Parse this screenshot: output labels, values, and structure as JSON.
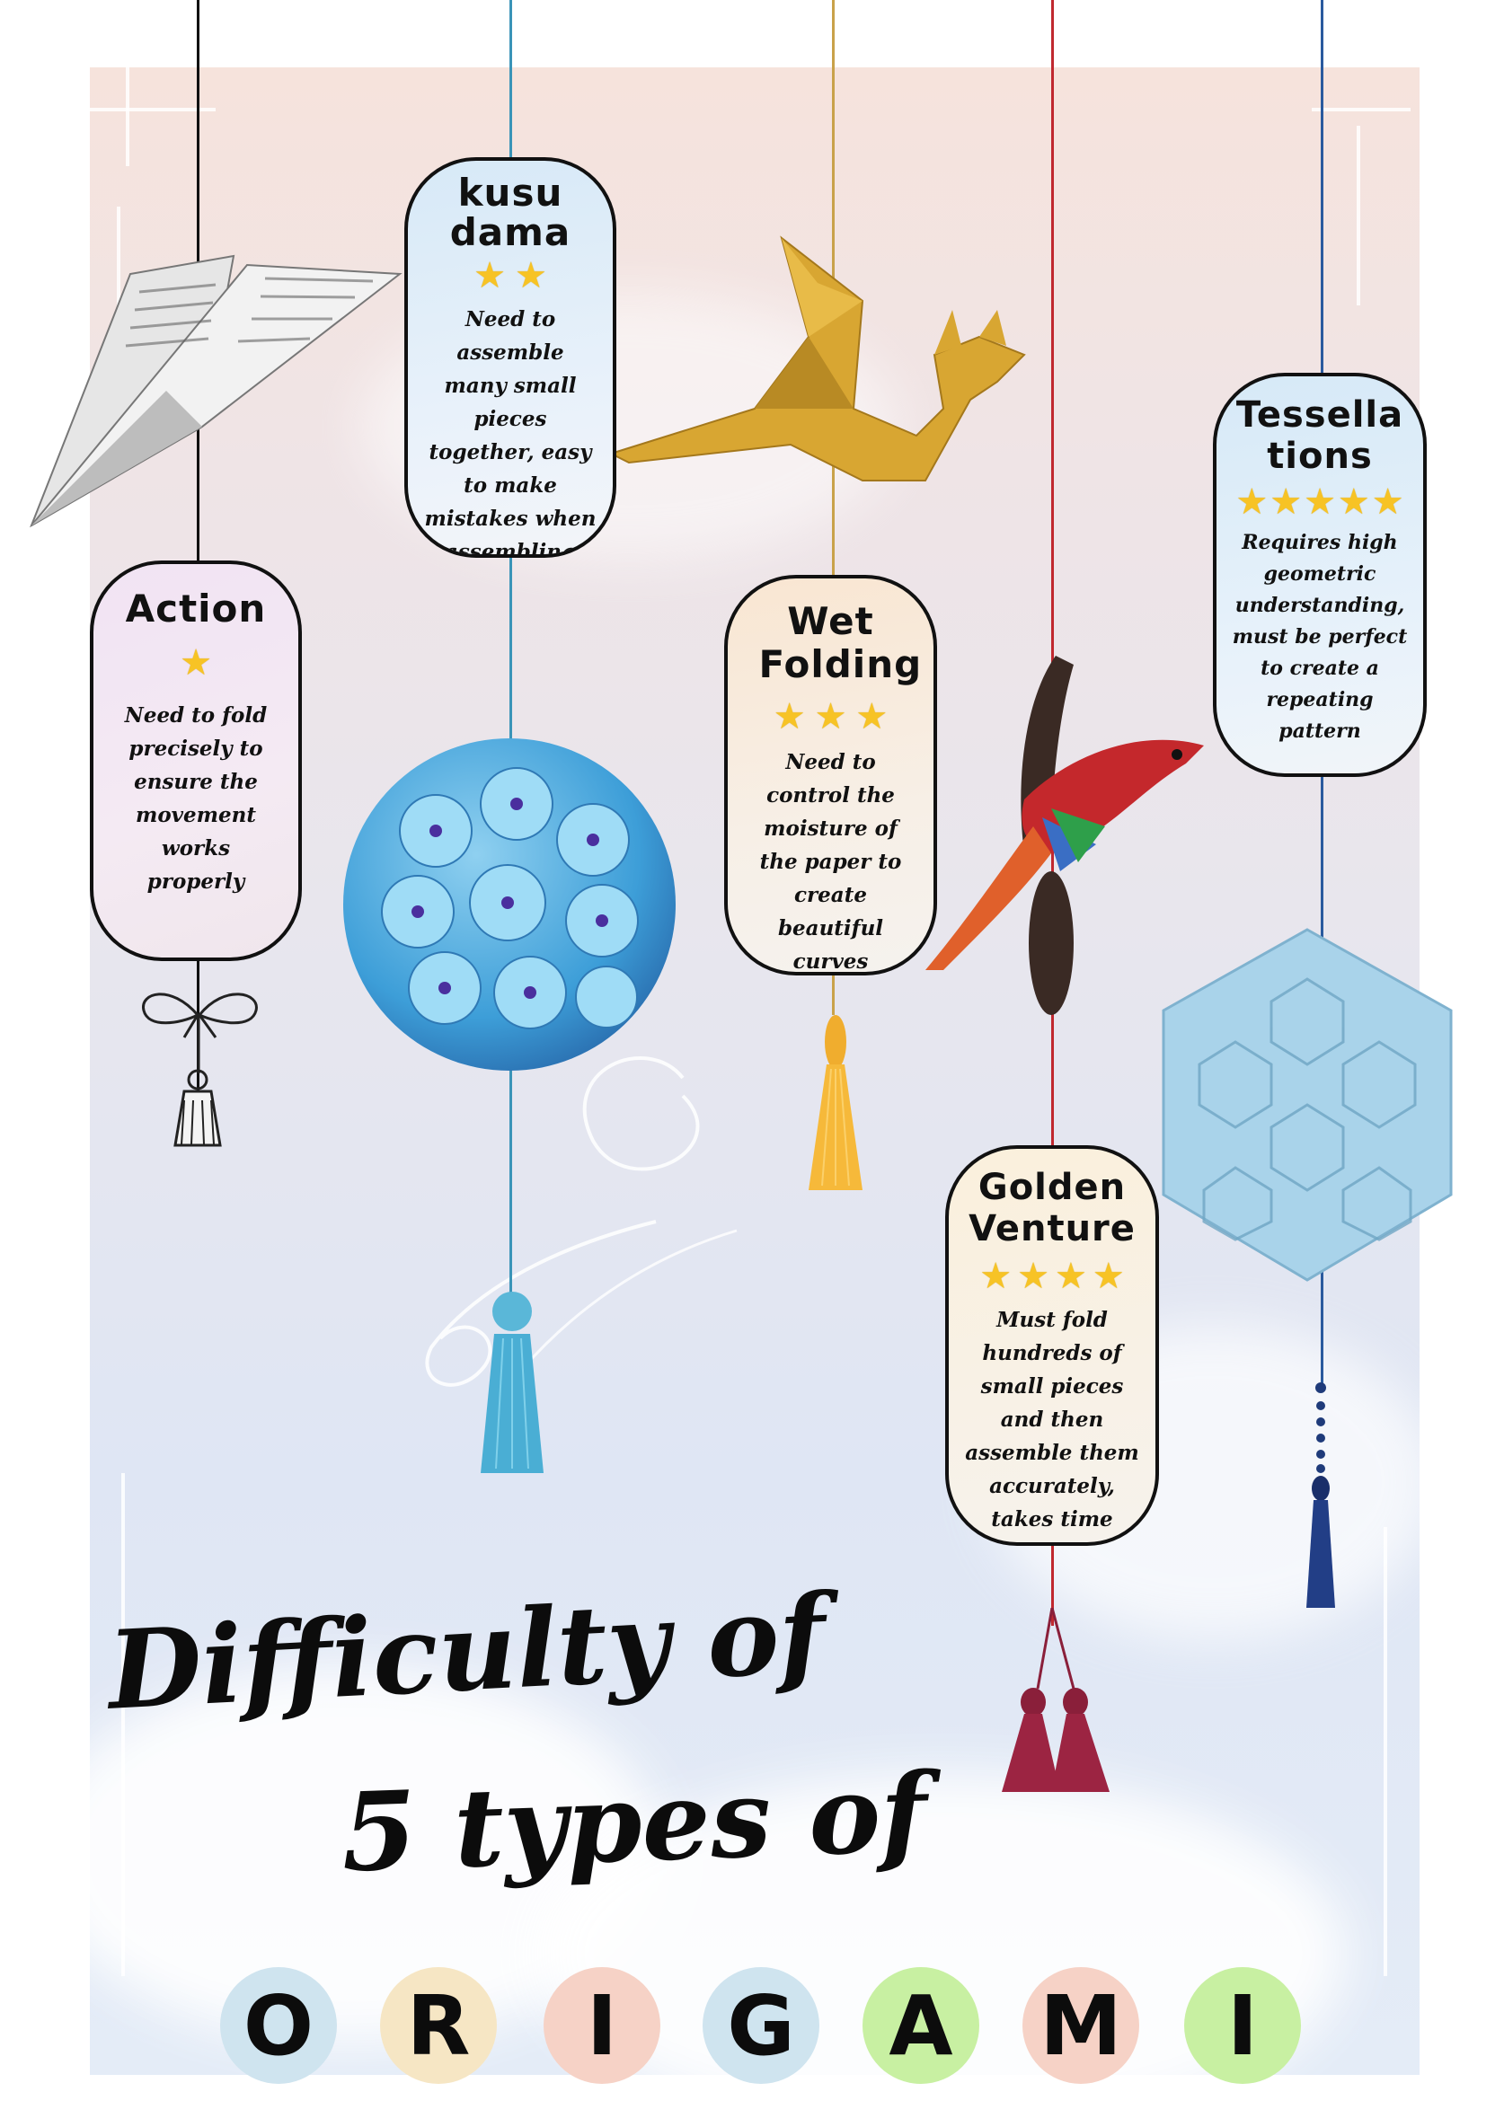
{
  "cards": [
    {
      "title": "Action",
      "stars": 1,
      "description": "Need to fold precisely to ensure the movement works properly"
    },
    {
      "title": "kusu dama",
      "stars": 2,
      "description": "Need to assemble many small pieces together, easy to make mistakes when assembling"
    },
    {
      "title": "Wet Folding",
      "stars": 3,
      "description": "Need to control the moisture of the paper to create beautiful curves"
    },
    {
      "title": "Golden Venture",
      "stars": 4,
      "description": "Must fold hundreds of small pieces and then assemble them accurately, takes time"
    },
    {
      "title": "Tessella tions",
      "stars": 5,
      "description": "Requires high geometric understanding, must be perfect to create a repeating pattern"
    }
  ],
  "title": {
    "line1": "Difficulty of",
    "line2": "5 types of",
    "letters": [
      "O",
      "R",
      "I",
      "G",
      "A",
      "M",
      "I"
    ]
  },
  "colors": {
    "star": "#f7c325",
    "letter_circles": [
      "#cfe4ef",
      "#f6e6c4",
      "#f6d2c6",
      "#cfe4ef",
      "#c8f0a2",
      "#f6d2c6",
      "#c8f0a2"
    ]
  },
  "icons": [
    "paper-plane-icon",
    "dragon-icon",
    "bird-icon",
    "kusudama-ball-icon",
    "tessellation-hexagon-icon",
    "tassel-icon",
    "bow-icon"
  ]
}
